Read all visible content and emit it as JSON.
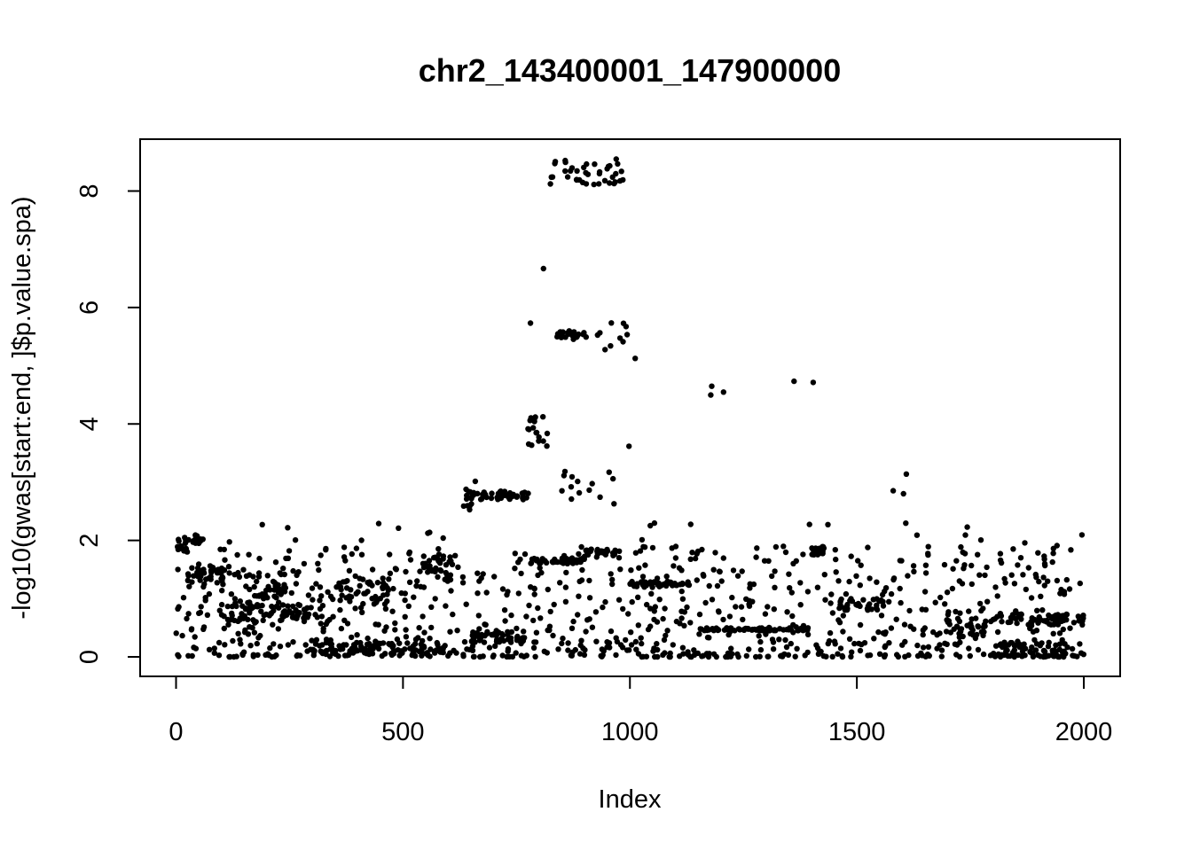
{
  "chart_data": {
    "type": "scatter",
    "title": "chr2_143400001_147900000",
    "xlabel": "Index",
    "ylabel": "-log10(gwas[start:end, ]$p.value.spa)",
    "xlim": [
      0,
      2000
    ],
    "ylim": [
      0,
      8.6
    ],
    "xticks": [
      "0",
      "500",
      "1000",
      "1500",
      "2000"
    ],
    "xtick_values": [
      0,
      500,
      1000,
      1500,
      2000
    ],
    "yticks": [
      "0",
      "2",
      "4",
      "6",
      "8"
    ],
    "ytick_values": [
      0,
      2,
      4,
      6,
      8
    ],
    "grid": false,
    "point_color": "#000000",
    "n_points": 2000,
    "bands": [
      {
        "x": [
          0,
          30
        ],
        "y": [
          1.75,
          2.05
        ]
      },
      {
        "x": [
          30,
          60
        ],
        "y": [
          1.95,
          2.1
        ]
      },
      {
        "x": [
          25,
          140
        ],
        "y": [
          1.2,
          1.55
        ]
      },
      {
        "x": [
          90,
          340
        ],
        "y": [
          0.6,
          0.9
        ]
      },
      {
        "x": [
          170,
          240
        ],
        "y": [
          1.0,
          1.3
        ]
      },
      {
        "x": [
          300,
          600
        ],
        "y": [
          0.05,
          0.25
        ]
      },
      {
        "x": [
          340,
          470
        ],
        "y": [
          0.9,
          1.35
        ]
      },
      {
        "x": [
          540,
          610
        ],
        "y": [
          1.3,
          1.75
        ]
      },
      {
        "x": [
          640,
          780
        ],
        "y": [
          2.7,
          2.85
        ]
      },
      {
        "x": [
          650,
          770
        ],
        "y": [
          0.25,
          0.45
        ]
      },
      {
        "x": [
          780,
          900
        ],
        "y": [
          1.6,
          1.7
        ]
      },
      {
        "x": [
          900,
          970
        ],
        "y": [
          1.75,
          1.85
        ]
      },
      {
        "x": [
          1000,
          1140
        ],
        "y": [
          1.2,
          1.3
        ]
      },
      {
        "x": [
          1150,
          1400
        ],
        "y": [
          0.45,
          0.5
        ]
      },
      {
        "x": [
          1400,
          1430
        ],
        "y": [
          1.75,
          1.9
        ]
      },
      {
        "x": [
          1460,
          1560
        ],
        "y": [
          0.8,
          1.0
        ]
      },
      {
        "x": [
          1690,
          1780
        ],
        "y": [
          0.35,
          0.8
        ]
      },
      {
        "x": [
          1780,
          2000
        ],
        "y": [
          0.55,
          0.75
        ]
      },
      {
        "x": [
          1800,
          1950
        ],
        "y": [
          0.0,
          0.25
        ]
      }
    ],
    "peaks": [
      {
        "x": [
          815,
          985
        ],
        "y": [
          8.1,
          8.55
        ],
        "n": 40
      },
      {
        "x": [
          838,
          905
        ],
        "y": [
          5.45,
          5.6
        ],
        "n": 24
      },
      {
        "x": [
          915,
          1000
        ],
        "y": [
          5.2,
          5.75
        ],
        "n": 10
      },
      {
        "x": [
          775,
          820
        ],
        "y": [
          3.6,
          4.15
        ],
        "n": 18
      },
      {
        "x": [
          845,
          975
        ],
        "y": [
          2.6,
          3.2
        ],
        "n": 14
      },
      {
        "x": [
          630,
          660
        ],
        "y": [
          2.5,
          3.05
        ],
        "n": 8
      },
      {
        "x": [
          1160,
          1215
        ],
        "y": [
          4.4,
          4.8
        ],
        "n": 3
      },
      {
        "x": [
          1330,
          1410
        ],
        "y": [
          4.55,
          4.8
        ],
        "n": 2
      },
      {
        "x": [
          1560,
          1630
        ],
        "y": [
          2.8,
          3.2
        ],
        "n": 3
      },
      {
        "x": [
          800,
          810
        ],
        "y": [
          6.65,
          6.7
        ],
        "n": 1
      },
      {
        "x": [
          780,
          790
        ],
        "y": [
          5.7,
          5.75
        ],
        "n": 1
      },
      {
        "x": [
          1010,
          1020
        ],
        "y": [
          5.1,
          5.15
        ],
        "n": 1
      },
      {
        "x": [
          995,
          1005
        ],
        "y": [
          3.6,
          3.62
        ],
        "n": 1
      }
    ]
  }
}
